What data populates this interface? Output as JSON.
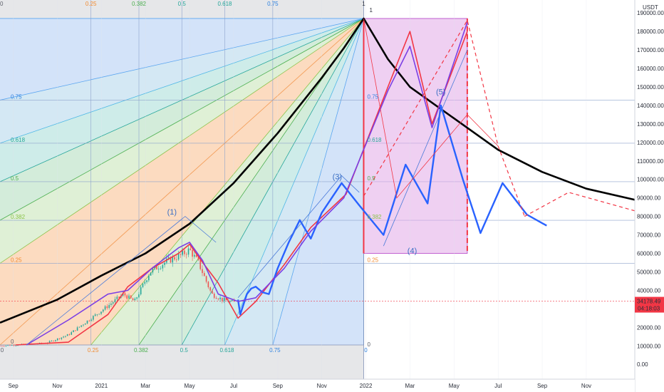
{
  "chart_data": {
    "type": "line",
    "title": "",
    "currency_label": "USDT",
    "ylim": [
      -8000,
      197000
    ],
    "y_ticks": [
      "190000.00",
      "180000.00",
      "170000.00",
      "160000.00",
      "150000.00",
      "140000.00",
      "130000.00",
      "120000.00",
      "110000.00",
      "100000.00",
      "90000.00",
      "80000.00",
      "70000.00",
      "60000.00",
      "50000.00",
      "40000.00",
      "30000.00",
      "20000.00",
      "10000.00",
      "0.00"
    ],
    "y_tick_values": [
      190000,
      180000,
      170000,
      160000,
      150000,
      140000,
      130000,
      120000,
      110000,
      100000,
      90000,
      80000,
      70000,
      60000,
      50000,
      40000,
      30000,
      20000,
      10000,
      0
    ],
    "x_ticks": [
      {
        "label": "Sep",
        "month": -4
      },
      {
        "label": "Nov",
        "month": -2
      },
      {
        "label": "2021",
        "month": 0
      },
      {
        "label": "Mar",
        "month": 2
      },
      {
        "label": "May",
        "month": 4
      },
      {
        "label": "Jul",
        "month": 6
      },
      {
        "label": "Sep",
        "month": 8
      },
      {
        "label": "Nov",
        "month": 10
      },
      {
        "label": "2022",
        "month": 12
      },
      {
        "label": "Mar",
        "month": 14
      },
      {
        "label": "May",
        "month": 16
      },
      {
        "label": "Jul",
        "month": 18
      },
      {
        "label": "Sep",
        "month": 20
      },
      {
        "label": "Nov",
        "month": 22
      }
    ],
    "xlim_months": [
      -4.6,
      24.2
    ],
    "price_badge": {
      "value": 34178.49,
      "label": "34178.49",
      "countdown": "04:18:03",
      "color": "#f23645"
    },
    "fib_left_top": [
      "0",
      "0.25",
      "0.382",
      "0.5",
      "0.618",
      "0.75",
      "1"
    ],
    "fib_bottom": [
      "0",
      "0.25",
      "0.382",
      "0.5",
      "0.618",
      "0.75",
      "0"
    ],
    "fib_left_side": [
      "0.75",
      "0.618",
      "0.5",
      "0.382",
      "0.25",
      "0"
    ],
    "fib_mid_side": [
      "0.75",
      "0.618",
      "0.5",
      "0.382",
      "0.25"
    ],
    "fib_top_mid": "1",
    "wave_labels": [
      "(1)",
      "(3)",
      "(4)",
      "(5)"
    ],
    "series": [
      {
        "name": "",
        "color": "#000000",
        "style": "curve",
        "values_month_price": [
          [
            -4.6,
            22500
          ],
          [
            -2,
            35000
          ],
          [
            0,
            48000
          ],
          [
            2,
            60000
          ],
          [
            4,
            76000
          ],
          [
            6,
            98000
          ],
          [
            8,
            125000
          ],
          [
            10,
            155000
          ],
          [
            11,
            171000
          ],
          [
            11.9,
            187000
          ],
          [
            13,
            165000
          ],
          [
            14,
            150000
          ],
          [
            16,
            133000
          ],
          [
            18,
            116000
          ],
          [
            20,
            104000
          ],
          [
            22,
            95000
          ],
          [
            24.2,
            89000
          ]
        ]
      },
      {
        "name": "",
        "color": "#f23645",
        "style": "solid",
        "values_month_price": [
          [
            -3.9,
            10500
          ],
          [
            -1.5,
            12000
          ],
          [
            0.3,
            27000
          ],
          [
            1.2,
            42000
          ],
          [
            2.3,
            52000
          ],
          [
            3.5,
            60000
          ],
          [
            4.0,
            65000
          ],
          [
            4.6,
            55000
          ],
          [
            5.3,
            44000
          ],
          [
            6.2,
            25000
          ],
          [
            7.0,
            34000
          ],
          [
            8.3,
            54000
          ],
          [
            9.5,
            74000
          ],
          [
            11.1,
            92000
          ],
          [
            13,
            150000
          ],
          [
            14,
            180000
          ],
          [
            15.0,
            130000
          ],
          [
            16.6,
            180000
          ]
        ]
      },
      {
        "name": "",
        "color": "#2962ff",
        "style": "solid",
        "values_month_price": [
          [
            6.2,
            35000
          ],
          [
            6.3,
            27000
          ],
          [
            6.6,
            38000
          ],
          [
            6.8,
            41000
          ],
          [
            7.0,
            42000
          ],
          [
            7.3,
            39000
          ],
          [
            7.6,
            38000
          ],
          [
            8.0,
            52000
          ],
          [
            8.5,
            66000
          ],
          [
            9.0,
            78000
          ],
          [
            9.5,
            68000
          ],
          [
            10.0,
            82000
          ],
          [
            10.9,
            98000
          ],
          [
            11.7,
            86000
          ],
          [
            12.8,
            70000
          ],
          [
            13.8,
            108000
          ],
          [
            14.8,
            87000
          ],
          [
            15.4,
            140000
          ],
          [
            16.4,
            100000
          ],
          [
            17.2,
            71000
          ],
          [
            18.2,
            98000
          ],
          [
            19.3,
            81000
          ],
          [
            20.2,
            75000
          ]
        ]
      },
      {
        "name": "",
        "color": "#7b3fe4",
        "style": "solid",
        "values_month_price": [
          [
            -3.4,
            10500
          ],
          [
            -1.5,
            24000
          ],
          [
            0.3,
            38000
          ],
          [
            1.2,
            40000
          ],
          [
            2.3,
            52000
          ],
          [
            3.5,
            63000
          ],
          [
            4.0,
            66000
          ],
          [
            4.6,
            56000
          ],
          [
            5.3,
            38000
          ],
          [
            6.2,
            34000
          ],
          [
            7.0,
            36000
          ],
          [
            8.3,
            52000
          ],
          [
            9.5,
            72000
          ],
          [
            11.0,
            90000
          ],
          [
            13.0,
            148000
          ],
          [
            14.0,
            172000
          ],
          [
            15.0,
            128000
          ],
          [
            16.6,
            185000
          ]
        ]
      }
    ]
  }
}
